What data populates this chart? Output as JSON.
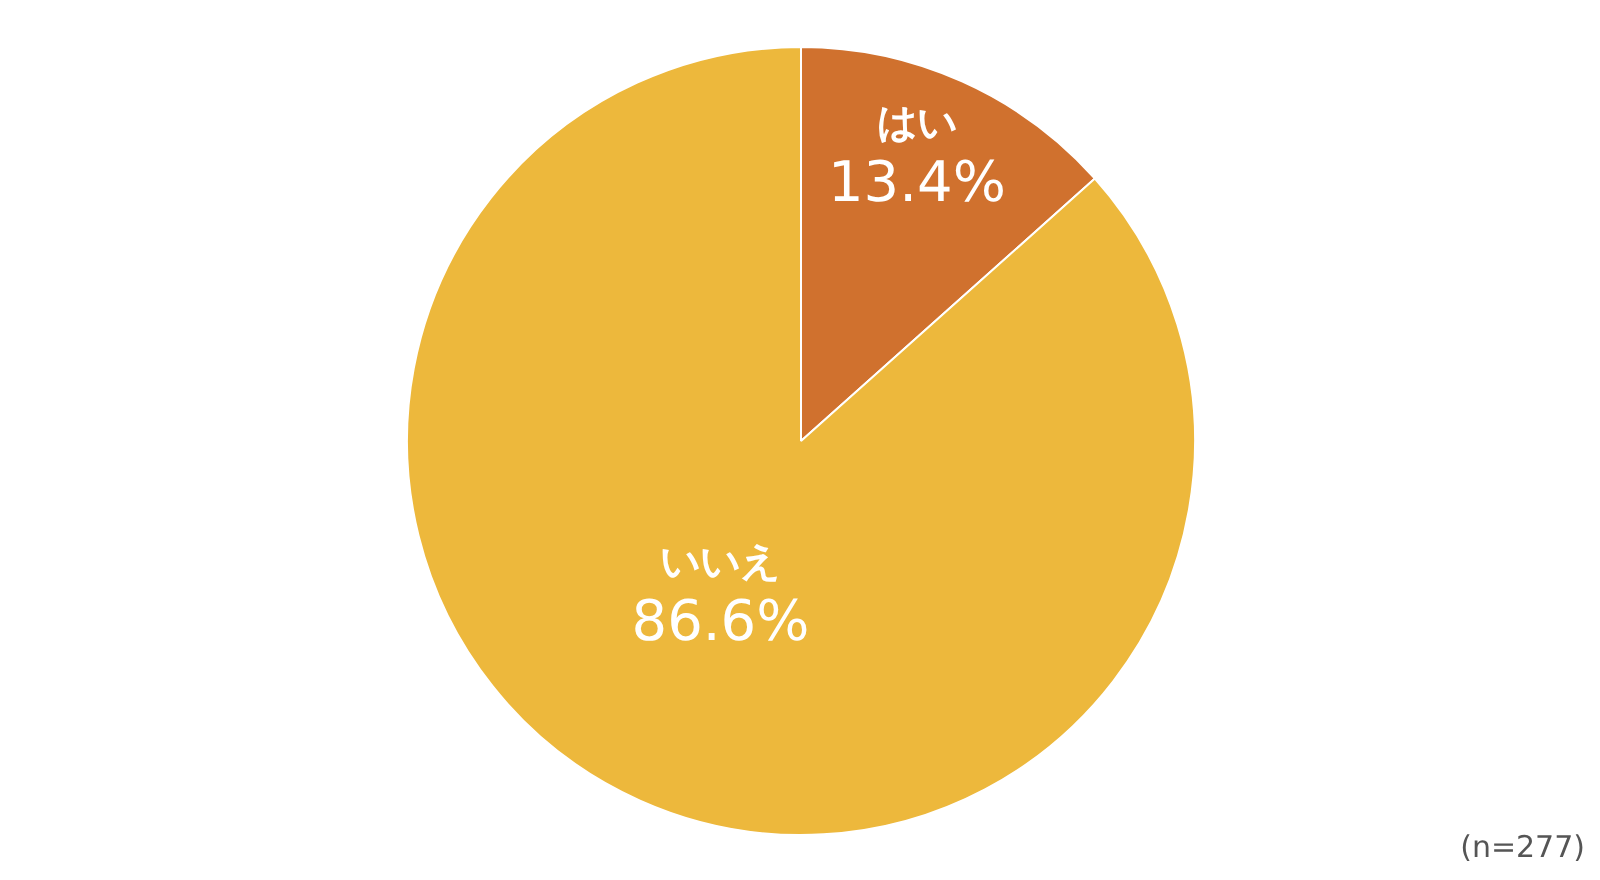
{
  "chart_data": {
    "type": "pie",
    "categories": [
      "はい",
      "いいえ"
    ],
    "values": [
      13.4,
      86.6
    ],
    "colors": [
      "#d0712e",
      "#edb83c"
    ],
    "value_labels": [
      "13.4%",
      "86.6%"
    ],
    "annotations": [
      "(n=277)"
    ]
  }
}
